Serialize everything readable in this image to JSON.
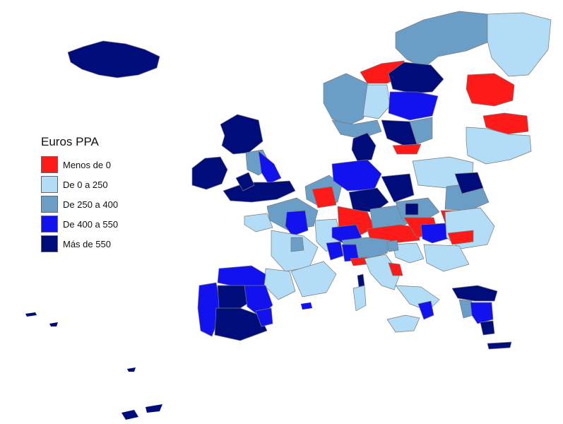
{
  "legend": {
    "title": "Euros PPA",
    "items": [
      {
        "label": "Menos de 0",
        "color": "#ff1a1a"
      },
      {
        "label": "De 0 a 250",
        "color": "#b3ddf6"
      },
      {
        "label": "De 250 a 400",
        "color": "#6b9ec7"
      },
      {
        "label": "De 400 a 550",
        "color": "#1212ef"
      },
      {
        "label": "Más de 550",
        "color": "#000c7a"
      }
    ]
  }
}
